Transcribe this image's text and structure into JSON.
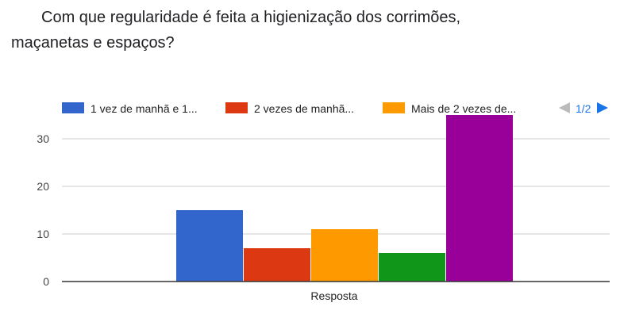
{
  "question": {
    "title": "Com que regularidade é feita a higienização dos corrimões, maçanetas e espaços?"
  },
  "legend": {
    "items": [
      {
        "label": "1 vez de manhã e 1...",
        "color": "#3366cc"
      },
      {
        "label": "2 vezes de manhã...",
        "color": "#dc3912"
      },
      {
        "label": "Mais de 2 vezes de...",
        "color": "#ff9900"
      }
    ],
    "page_indicator": "1/2",
    "prev_icon": "triangle-left-icon",
    "next_icon": "triangle-right-icon"
  },
  "chart_data": {
    "type": "bar",
    "title": "",
    "xlabel": "",
    "ylabel": "",
    "categories": [
      "Resposta"
    ],
    "series": [
      {
        "name": "1 vez de manhã e 1...",
        "values": [
          15
        ],
        "color": "#3366cc"
      },
      {
        "name": "2 vezes de manhã...",
        "values": [
          7
        ],
        "color": "#dc3912"
      },
      {
        "name": "Mais de 2 vezes de...",
        "values": [
          11
        ],
        "color": "#ff9900"
      },
      {
        "values": [
          6
        ],
        "color": "#109618"
      },
      {
        "values": [
          35
        ],
        "color": "#990099"
      }
    ],
    "category_labels": [
      "Resposta"
    ],
    "ylim": [
      0,
      35
    ],
    "yticks": [
      0,
      10,
      20,
      30
    ],
    "grid": true,
    "legend_position": "top"
  }
}
